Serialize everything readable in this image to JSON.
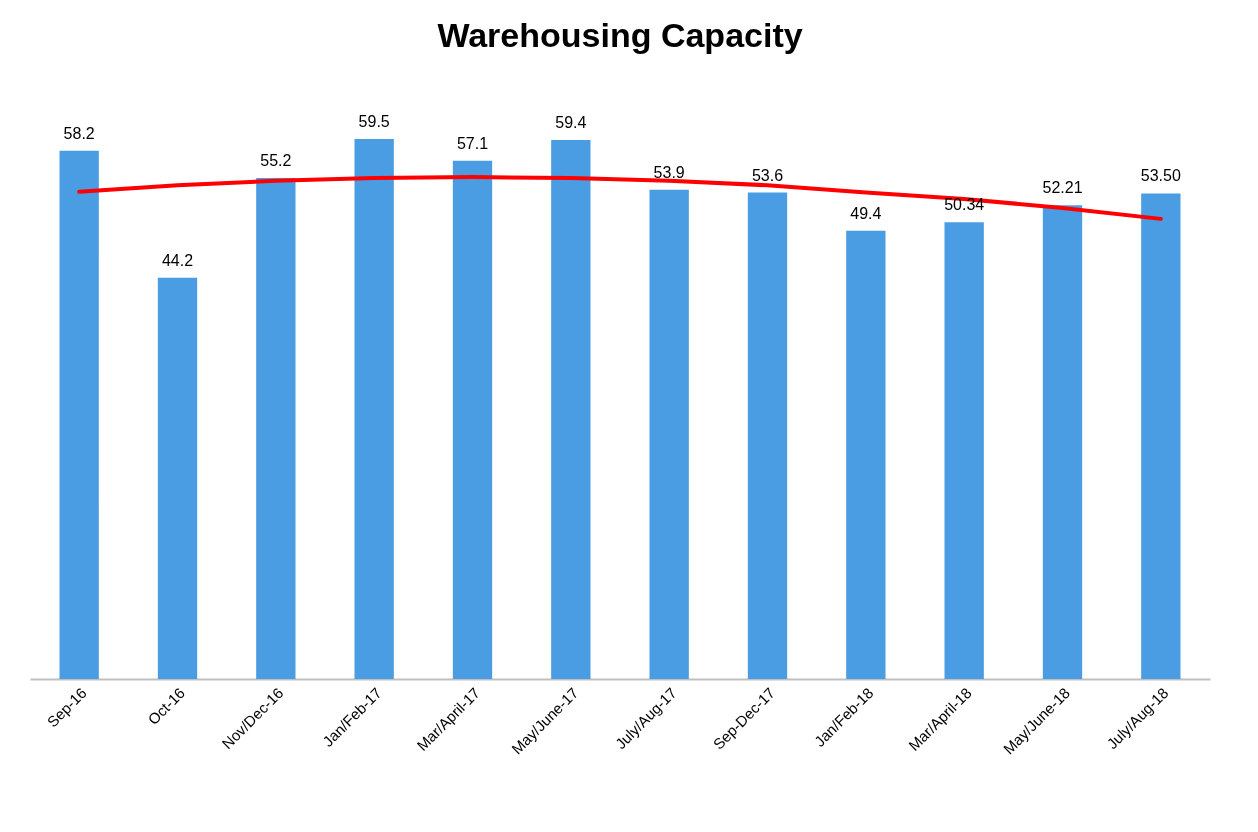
{
  "chart_data": {
    "type": "bar",
    "title": "Warehousing Capacity",
    "categories": [
      "Sep-16",
      "Oct-16",
      "Nov/Dec-16",
      "Jan/Feb-17",
      "Mar/April-17",
      "May/June-17",
      "July/Aug-17",
      "Sep-Dec-17",
      "Jan/Feb-18",
      "Mar/April-18",
      "May/June-18",
      "July/Aug-18"
    ],
    "series": [
      {
        "color": "#4b9de3",
        "values": [
          58.2,
          44.2,
          55.2,
          59.5,
          57.1,
          59.4,
          53.9,
          53.6,
          49.4,
          50.34,
          52.21,
          53.5
        ],
        "value_labels": [
          "58.2",
          "44.2",
          "55.2",
          "59.5",
          "57.1",
          "59.4",
          "53.9",
          "53.6",
          "49.4",
          "50.34",
          "52.21",
          "53.50"
        ]
      },
      {
        "type": "line",
        "color": "#ff0000",
        "values": [
          53.7,
          54.4,
          54.9,
          55.2,
          55.3,
          55.2,
          54.9,
          54.4,
          53.6,
          52.9,
          51.9,
          50.7
        ]
      }
    ],
    "grid": false
  }
}
